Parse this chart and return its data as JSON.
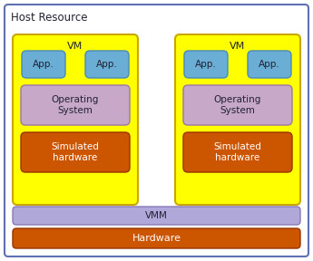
{
  "title": "Host Resource",
  "outer_border_color": "#6070b0",
  "outer_border_bg": "#ffffff",
  "vm_bg": "#ffff00",
  "vm_border": "#c8a800",
  "vm_label": "VM",
  "app_bg": "#6aaed6",
  "app_border": "#4a8ab8",
  "app_label": "App.",
  "os_bg": "#c8a8c8",
  "os_border": "#9878a8",
  "os_label": "Operating\nSystem",
  "sim_bg": "#cc5500",
  "sim_border": "#993300",
  "sim_label": "Simulated\nhardware",
  "vmm_bg": "#b0a8d8",
  "vmm_border": "#8878b8",
  "vmm_label": "VMM",
  "hw_bg": "#cc5500",
  "hw_border": "#993300",
  "hw_label": "Hardware",
  "font_color": "#222233",
  "title_fontsize": 8.5,
  "label_fontsize": 8,
  "small_fontsize": 7.5
}
